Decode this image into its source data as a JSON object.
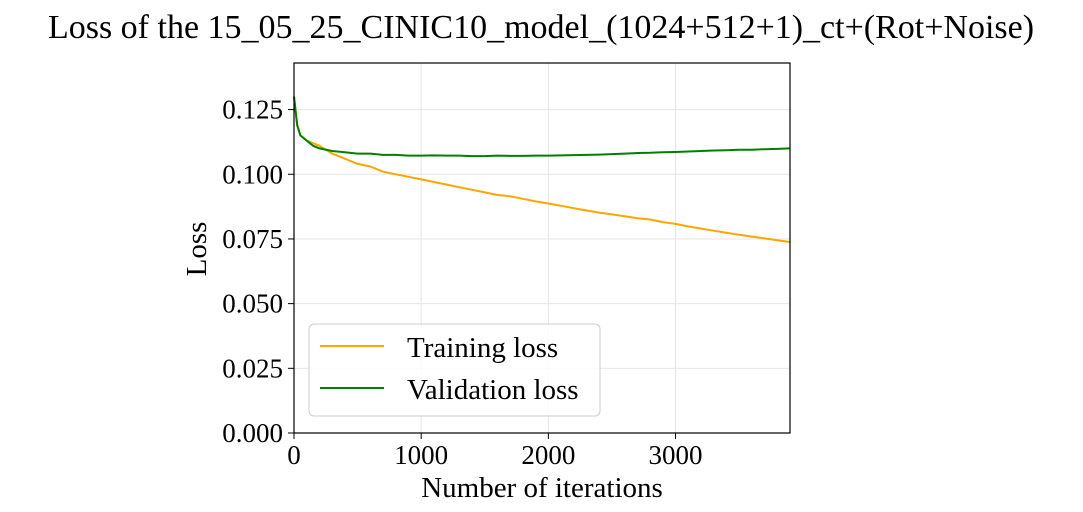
{
  "chart_data": {
    "type": "line",
    "title": "Loss of the 15_05_25_CINIC10_model_(1024+512+1)_ct+(Rot+Noise)",
    "xlabel": "Number of iterations",
    "ylabel": "Loss",
    "xlim": [
      0,
      3900
    ],
    "ylim": [
      0,
      0.143
    ],
    "xticks": [
      0,
      1000,
      2000,
      3000
    ],
    "xtick_labels": [
      "0",
      "1000",
      "2000",
      "3000"
    ],
    "yticks": [
      0.0,
      0.025,
      0.05,
      0.075,
      0.1,
      0.125
    ],
    "ytick_labels": [
      "0.000",
      "0.025",
      "0.050",
      "0.075",
      "0.100",
      "0.125"
    ],
    "grid": true,
    "legend_position": "lower-left",
    "series": [
      {
        "name": "Training loss",
        "color": "#FFA500",
        "x": [
          0,
          25,
          50,
          100,
          150,
          200,
          300,
          400,
          500,
          600,
          700,
          800,
          900,
          1000,
          1100,
          1200,
          1300,
          1400,
          1500,
          1600,
          1700,
          1800,
          1900,
          2000,
          2100,
          2200,
          2300,
          2400,
          2500,
          2600,
          2700,
          2800,
          2900,
          3000,
          3100,
          3200,
          3300,
          3400,
          3500,
          3600,
          3700,
          3800,
          3900
        ],
        "values": [
          0.13,
          0.119,
          0.115,
          0.113,
          0.112,
          0.111,
          0.108,
          0.106,
          0.104,
          0.103,
          0.101,
          0.1,
          0.099,
          0.098,
          0.097,
          0.096,
          0.095,
          0.094,
          0.093,
          0.092,
          0.0915,
          0.0905,
          0.0895,
          0.0887,
          0.0878,
          0.0869,
          0.086,
          0.0852,
          0.0845,
          0.0838,
          0.083,
          0.0825,
          0.0815,
          0.0808,
          0.0798,
          0.079,
          0.0782,
          0.0774,
          0.0766,
          0.0759,
          0.0752,
          0.0745,
          0.0738
        ]
      },
      {
        "name": "Validation loss",
        "color": "#008000",
        "x": [
          0,
          25,
          50,
          100,
          150,
          200,
          300,
          400,
          500,
          600,
          700,
          800,
          900,
          1000,
          1100,
          1200,
          1300,
          1400,
          1500,
          1600,
          1700,
          1800,
          1900,
          2000,
          2100,
          2200,
          2300,
          2400,
          2500,
          2600,
          2700,
          2800,
          2900,
          3000,
          3100,
          3200,
          3300,
          3400,
          3500,
          3600,
          3700,
          3800,
          3900
        ],
        "values": [
          0.13,
          0.119,
          0.115,
          0.113,
          0.111,
          0.11,
          0.109,
          0.1085,
          0.108,
          0.108,
          0.1075,
          0.1075,
          0.1072,
          0.1072,
          0.1073,
          0.1072,
          0.1072,
          0.107,
          0.107,
          0.1072,
          0.1071,
          0.1071,
          0.1072,
          0.1072,
          0.1073,
          0.1074,
          0.1075,
          0.1076,
          0.1078,
          0.108,
          0.1082,
          0.1083,
          0.1085,
          0.1086,
          0.1088,
          0.109,
          0.1092,
          0.1093,
          0.1095,
          0.1095,
          0.1097,
          0.1098,
          0.11
        ]
      }
    ]
  }
}
